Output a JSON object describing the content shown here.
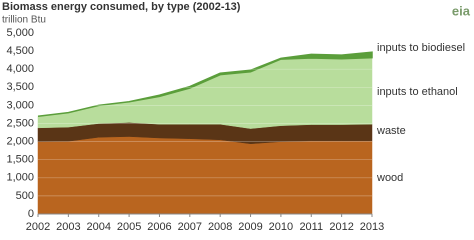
{
  "chart_data": {
    "type": "stacked_area",
    "title": "Biomass energy consumed, by type (2002-13)",
    "subtitle": "trillion Btu",
    "logo": "eia",
    "x": [
      2002,
      2003,
      2004,
      2005,
      2006,
      2007,
      2008,
      2009,
      2010,
      2011,
      2012,
      2013
    ],
    "xlim": [
      2002,
      2013
    ],
    "xticks": [
      2002,
      2003,
      2004,
      2005,
      2006,
      2007,
      2008,
      2009,
      2010,
      2011,
      2012,
      2013
    ],
    "ylim": [
      0,
      5000
    ],
    "yticks": [
      0,
      500,
      {
        "value": 1000,
        "label": "1,000"
      },
      {
        "value": 1500,
        "label": "1,500"
      },
      {
        "value": 2000,
        "label": "2,000"
      },
      {
        "value": 2500,
        "label": "2,500"
      },
      {
        "value": 3000,
        "label": "3,000"
      },
      {
        "value": 3500,
        "label": "3,500"
      },
      {
        "value": 4000,
        "label": "4,000"
      },
      {
        "value": 4500,
        "label": "4,500"
      },
      {
        "value": 5000,
        "label": "5,000"
      }
    ],
    "grid": true,
    "series": [
      {
        "name": "wood",
        "color": "#b9651f",
        "values": [
          2000,
          2010,
          2120,
          2140,
          2100,
          2080,
          2050,
          1940,
          2000,
          2020,
          2020,
          2020
        ]
      },
      {
        "name": "waste",
        "color": "#5a3516",
        "values": [
          380,
          390,
          380,
          390,
          380,
          400,
          430,
          420,
          440,
          450,
          450,
          460
        ]
      },
      {
        "name": "inputs to ethanol",
        "color": "#b8dd9c",
        "values": [
          320,
          400,
          500,
          570,
          770,
          1000,
          1370,
          1570,
          1840,
          1840,
          1820,
          1840
        ]
      },
      {
        "name": "inputs to biodiesel",
        "color": "#5b9e3b",
        "values": [
          0,
          0,
          0,
          0,
          30,
          40,
          40,
          40,
          20,
          100,
          100,
          150
        ]
      }
    ]
  }
}
